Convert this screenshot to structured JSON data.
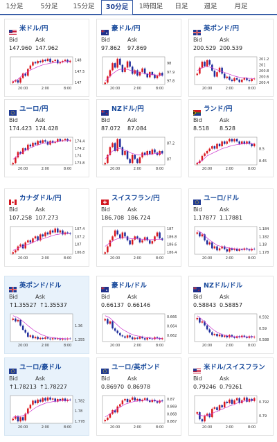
{
  "tabs": [
    "1分足",
    "5分足",
    "15分足",
    "30分足",
    "1時間足",
    "日足",
    "週足",
    "月足"
  ],
  "active_tab": 3,
  "labels": {
    "bid": "Bid",
    "ask": "Ask"
  },
  "colors": {
    "title": "#1a4b9c",
    "up": "#d9181f",
    "down": "#1f2d9c",
    "ma": "#cc33cc",
    "highlight": "#e8f2fb"
  },
  "cards": [
    {
      "name": "米ドル/円",
      "flag": "us",
      "bid": "147.960",
      "ask": "147.962",
      "highlight": false,
      "arrow": false,
      "chart_data": {
        "type": "candlestick",
        "yticks": [
          "148",
          "147.5",
          "147"
        ],
        "xticks": [
          "20:00",
          "2:00",
          "8:00"
        ],
        "closes": [
          147.05,
          147.1,
          147.0,
          147.2,
          147.4,
          147.3,
          147.6,
          147.75,
          147.9,
          147.85,
          147.95,
          147.9,
          148.0,
          147.95,
          148.05,
          147.9,
          147.95,
          148.0,
          147.85,
          147.9,
          147.95,
          148.0,
          147.9,
          147.96
        ],
        "ma": [
          147.05,
          147.1,
          147.15,
          147.25,
          147.35,
          147.4,
          147.48,
          147.55,
          147.6,
          147.65,
          147.7,
          147.74,
          147.78,
          147.8,
          147.83,
          147.85,
          147.87,
          147.88,
          147.9,
          147.9,
          147.91,
          147.92,
          147.93,
          147.93
        ]
      }
    },
    {
      "name": "豪ドル/円",
      "flag": "au",
      "bid": "97.862",
      "ask": "97.869",
      "highlight": false,
      "arrow": false,
      "chart_data": {
        "type": "candlestick",
        "yticks": [
          "98",
          "97.9",
          "97.8"
        ],
        "xticks": [
          "20:00",
          "2:00",
          "8:00"
        ],
        "closes": [
          97.78,
          97.85,
          97.92,
          98.0,
          97.95,
          98.05,
          97.98,
          97.9,
          97.95,
          98.02,
          97.96,
          97.88,
          97.92,
          97.86,
          97.9,
          97.94,
          97.88,
          97.84,
          97.9,
          97.87,
          97.83,
          97.86,
          97.89,
          97.86
        ],
        "ma": [
          97.8,
          97.82,
          97.85,
          97.88,
          97.9,
          97.92,
          97.93,
          97.93,
          97.93,
          97.93,
          97.92,
          97.91,
          97.9,
          97.9,
          97.89,
          97.89,
          97.88,
          97.88,
          97.87,
          97.87,
          97.87,
          97.86,
          97.86,
          97.86
        ]
      }
    },
    {
      "name": "英ポンド/円",
      "flag": "gb",
      "bid": "200.529",
      "ask": "200.539",
      "highlight": false,
      "arrow": false,
      "chart_data": {
        "type": "candlestick",
        "yticks": [
          "201.2",
          "201",
          "200.8",
          "200.6",
          "200.4"
        ],
        "xticks": [
          "20:00",
          "2:00",
          "8:00"
        ],
        "closes": [
          200.7,
          200.9,
          201.1,
          200.95,
          201.15,
          201.0,
          200.8,
          200.6,
          200.75,
          200.9,
          200.7,
          200.55,
          200.6,
          200.5,
          200.45,
          200.55,
          200.5,
          200.42,
          200.5,
          200.55,
          200.48,
          200.45,
          200.52,
          200.53
        ],
        "ma": [
          200.8,
          200.85,
          200.9,
          200.92,
          200.93,
          200.92,
          200.9,
          200.86,
          200.83,
          200.8,
          200.77,
          200.74,
          200.71,
          200.68,
          200.65,
          200.62,
          200.6,
          200.58,
          200.57,
          200.56,
          200.55,
          200.54,
          200.54,
          200.53
        ]
      }
    },
    {
      "name": "ユーロ/円",
      "flag": "eu",
      "bid": "174.423",
      "ask": "174.428",
      "highlight": false,
      "arrow": false,
      "chart_data": {
        "type": "candlestick",
        "yticks": [
          "174.4",
          "174.2",
          "174",
          "173.8"
        ],
        "xticks": [
          "20:00",
          "2:00",
          "8:00"
        ],
        "closes": [
          173.8,
          173.95,
          174.1,
          174.05,
          174.2,
          174.15,
          174.3,
          174.25,
          174.35,
          174.3,
          174.4,
          174.35,
          174.42,
          174.38,
          174.3,
          174.4,
          174.35,
          174.38,
          174.45,
          174.4,
          174.42,
          174.45,
          174.4,
          174.42
        ],
        "ma": [
          173.9,
          173.95,
          174.0,
          174.05,
          174.1,
          174.14,
          174.18,
          174.21,
          174.24,
          174.27,
          174.29,
          174.31,
          174.33,
          174.34,
          174.35,
          174.36,
          174.37,
          174.37,
          174.38,
          174.39,
          174.4,
          174.4,
          174.41,
          174.41
        ]
      }
    },
    {
      "name": "NZドル/円",
      "flag": "nz",
      "bid": "87.072",
      "ask": "87.084",
      "highlight": false,
      "arrow": false,
      "chart_data": {
        "type": "candlestick",
        "yticks": [
          "87.2",
          "87"
        ],
        "xticks": [
          "20:00",
          "2:00",
          "8:00"
        ],
        "closes": [
          86.95,
          87.05,
          87.15,
          87.2,
          87.1,
          87.25,
          87.15,
          87.05,
          87.1,
          87.0,
          86.95,
          87.05,
          87.0,
          86.95,
          87.02,
          87.08,
          87.05,
          87.1,
          87.06,
          87.12,
          87.08,
          87.05,
          87.1,
          87.07
        ],
        "ma": [
          87.0,
          87.03,
          87.07,
          87.1,
          87.11,
          87.13,
          87.13,
          87.12,
          87.11,
          87.1,
          87.08,
          87.07,
          87.06,
          87.05,
          87.05,
          87.05,
          87.05,
          87.06,
          87.06,
          87.06,
          87.07,
          87.07,
          87.07,
          87.07
        ]
      }
    },
    {
      "name": "ランド/円",
      "flag": "za",
      "bid": "8.518",
      "ask": "8.528",
      "highlight": false,
      "arrow": false,
      "chart_data": {
        "type": "candlestick",
        "yticks": [
          "8.5",
          "8.45"
        ],
        "xticks": [
          "20:00",
          "2:00",
          "8:00"
        ],
        "closes": [
          8.44,
          8.45,
          8.47,
          8.48,
          8.49,
          8.5,
          8.51,
          8.5,
          8.52,
          8.51,
          8.53,
          8.52,
          8.53,
          8.54,
          8.53,
          8.54,
          8.53,
          8.52,
          8.53,
          8.52,
          8.53,
          8.52,
          8.51,
          8.52
        ],
        "ma": [
          8.44,
          8.445,
          8.45,
          8.46,
          8.47,
          8.475,
          8.48,
          8.485,
          8.49,
          8.495,
          8.5,
          8.503,
          8.506,
          8.51,
          8.512,
          8.515,
          8.517,
          8.518,
          8.52,
          8.52,
          8.521,
          8.521,
          8.52,
          8.52
        ]
      }
    },
    {
      "name": "カナダドル/円",
      "flag": "ca",
      "bid": "107.258",
      "ask": "107.273",
      "highlight": false,
      "arrow": false,
      "chart_data": {
        "type": "candlestick",
        "yticks": [
          "107.4",
          "107.2",
          "107",
          "106.8"
        ],
        "xticks": [
          "20:00",
          "2:00",
          "8:00"
        ],
        "closes": [
          106.8,
          106.85,
          106.95,
          107.0,
          106.9,
          107.05,
          107.1,
          107.05,
          107.15,
          107.2,
          107.1,
          107.25,
          107.2,
          107.3,
          107.25,
          107.35,
          107.3,
          107.4,
          107.3,
          107.35,
          107.25,
          107.3,
          107.28,
          107.26
        ],
        "ma": [
          106.85,
          106.87,
          106.9,
          106.93,
          106.95,
          106.98,
          107.0,
          107.02,
          107.05,
          107.08,
          107.1,
          107.12,
          107.14,
          107.16,
          107.18,
          107.2,
          107.22,
          107.24,
          107.25,
          107.26,
          107.27,
          107.27,
          107.27,
          107.27
        ]
      }
    },
    {
      "name": "スイスフラン/円",
      "flag": "ch",
      "bid": "186.708",
      "ask": "186.724",
      "highlight": false,
      "arrow": false,
      "chart_data": {
        "type": "candlestick",
        "yticks": [
          "187",
          "186.8",
          "186.6",
          "186.4"
        ],
        "xticks": [
          "20:00",
          "2:00",
          "8:00"
        ],
        "closes": [
          186.4,
          186.55,
          186.7,
          186.8,
          186.95,
          186.85,
          186.75,
          186.9,
          186.8,
          186.7,
          186.6,
          186.72,
          186.8,
          186.75,
          186.65,
          186.7,
          186.78,
          186.7,
          186.62,
          186.68,
          186.8,
          186.9,
          186.75,
          186.71
        ],
        "ma": [
          186.55,
          186.6,
          186.64,
          186.68,
          186.72,
          186.74,
          186.76,
          186.77,
          186.77,
          186.76,
          186.75,
          186.74,
          186.74,
          186.74,
          186.73,
          186.73,
          186.73,
          186.72,
          186.72,
          186.72,
          186.72,
          186.73,
          186.73,
          186.72
        ]
      }
    },
    {
      "name": "ユーロ/ドル",
      "flag": "eu",
      "bid": "1.17877",
      "ask": "1.17881",
      "highlight": false,
      "arrow": false,
      "chart_data": {
        "type": "candlestick",
        "yticks": [
          "1.184",
          "1.182",
          "1.18",
          "1.178"
        ],
        "xticks": [
          "20:00",
          "2:00",
          "8:00"
        ],
        "closes": [
          1.183,
          1.182,
          1.1825,
          1.181,
          1.18,
          1.1805,
          1.179,
          1.1795,
          1.1785,
          1.179,
          1.1795,
          1.1788,
          1.1782,
          1.179,
          1.1786,
          1.1789,
          1.1784,
          1.1788,
          1.1786,
          1.179,
          1.1787,
          1.1785,
          1.1789,
          1.1788
        ],
        "ma": [
          1.1835,
          1.1832,
          1.1828,
          1.1822,
          1.1816,
          1.1811,
          1.1806,
          1.1802,
          1.1798,
          1.1796,
          1.1794,
          1.1793,
          1.1792,
          1.1791,
          1.179,
          1.1789,
          1.1789,
          1.1788,
          1.1788,
          1.1788,
          1.1788,
          1.1788,
          1.1788,
          1.1788
        ]
      }
    },
    {
      "name": "英ポンド/ドル",
      "flag": "gb",
      "bid": "1.35527",
      "ask": "1.35537",
      "highlight": true,
      "arrow": true,
      "chart_data": {
        "type": "candlestick",
        "yticks": [
          "1.36",
          "1.355"
        ],
        "xticks": [
          "20:00",
          "2:00",
          "8:00"
        ],
        "closes": [
          1.3625,
          1.3615,
          1.362,
          1.36,
          1.3585,
          1.3575,
          1.356,
          1.3565,
          1.3555,
          1.356,
          1.3552,
          1.3556,
          1.3553,
          1.3558,
          1.3554,
          1.3551,
          1.3555,
          1.3552,
          1.3554,
          1.355,
          1.3553,
          1.3551,
          1.3554,
          1.3553
        ],
        "ma": [
          1.3635,
          1.3632,
          1.3628,
          1.3622,
          1.3615,
          1.3608,
          1.36,
          1.3593,
          1.3586,
          1.358,
          1.3575,
          1.357,
          1.3566,
          1.3563,
          1.356,
          1.3558,
          1.3557,
          1.3556,
          1.3555,
          1.3554,
          1.3554,
          1.3553,
          1.3553,
          1.3553
        ]
      }
    },
    {
      "name": "豪ドル/ドル",
      "flag": "au",
      "bid": "0.66137",
      "ask": "0.66146",
      "highlight": false,
      "arrow": false,
      "chart_data": {
        "type": "candlestick",
        "yticks": [
          "0.666",
          "0.664",
          "0.662"
        ],
        "xticks": [
          "20:00",
          "2:00",
          "8:00"
        ],
        "closes": [
          0.6655,
          0.6645,
          0.665,
          0.6635,
          0.663,
          0.6625,
          0.662,
          0.6618,
          0.6615,
          0.662,
          0.6616,
          0.6612,
          0.6615,
          0.6613,
          0.6617,
          0.6614,
          0.6611,
          0.6615,
          0.6613,
          0.6612,
          0.6616,
          0.6614,
          0.6612,
          0.6614
        ],
        "ma": [
          0.6662,
          0.666,
          0.6657,
          0.6652,
          0.6647,
          0.6642,
          0.6637,
          0.6633,
          0.663,
          0.6627,
          0.6624,
          0.6622,
          0.662,
          0.6619,
          0.6618,
          0.6617,
          0.6616,
          0.6615,
          0.6615,
          0.6614,
          0.6614,
          0.6614,
          0.6614,
          0.6614
        ]
      }
    },
    {
      "name": "NZドル/ドル",
      "flag": "nz",
      "bid": "0.58843",
      "ask": "0.58857",
      "highlight": false,
      "arrow": false,
      "chart_data": {
        "type": "candlestick",
        "yticks": [
          "0.592",
          "0.59",
          "0.588"
        ],
        "xticks": [
          "20:00",
          "2:00",
          "8:00"
        ],
        "closes": [
          0.5918,
          0.591,
          0.5912,
          0.5905,
          0.5898,
          0.5893,
          0.5888,
          0.589,
          0.5886,
          0.5889,
          0.5885,
          0.5887,
          0.5884,
          0.5888,
          0.5885,
          0.5883,
          0.5886,
          0.5884,
          0.5887,
          0.5885,
          0.5883,
          0.5886,
          0.5884,
          0.5885
        ],
        "ma": [
          0.5922,
          0.5919,
          0.5915,
          0.5911,
          0.5907,
          0.5903,
          0.5899,
          0.5896,
          0.5893,
          0.5891,
          0.5889,
          0.5888,
          0.5887,
          0.5886,
          0.5886,
          0.5885,
          0.5885,
          0.5885,
          0.5885,
          0.5885,
          0.5885,
          0.5885,
          0.5885,
          0.5885
        ]
      }
    },
    {
      "name": "ユーロ/豪ドル",
      "flag": "eu",
      "bid": "1.78213",
      "ask": "1.78227",
      "highlight": true,
      "arrow": true,
      "chart_data": {
        "type": "candlestick",
        "yticks": [
          "1.782",
          "1.78",
          "1.778"
        ],
        "xticks": [
          "20:00",
          "2:00",
          "8:00"
        ],
        "closes": [
          1.7785,
          1.779,
          1.778,
          1.7788,
          1.7782,
          1.7795,
          1.7805,
          1.7812,
          1.782,
          1.7815,
          1.7822,
          1.7818,
          1.7825,
          1.782,
          1.7826,
          1.7822,
          1.7824,
          1.7818,
          1.7823,
          1.782,
          1.7824,
          1.7819,
          1.7822,
          1.7821
        ],
        "ma": [
          1.7788,
          1.7789,
          1.7789,
          1.779,
          1.7791,
          1.7793,
          1.7796,
          1.7799,
          1.7803,
          1.7806,
          1.7809,
          1.7811,
          1.7813,
          1.7815,
          1.7816,
          1.7817,
          1.7818,
          1.7819,
          1.7819,
          1.782,
          1.782,
          1.782,
          1.7821,
          1.7821
        ]
      }
    },
    {
      "name": "ユーロ/英ポンド",
      "flag": "eu",
      "bid": "0.86970",
      "ask": "0.86978",
      "highlight": false,
      "arrow": false,
      "chart_data": {
        "type": "candlestick",
        "yticks": [
          "0.87",
          "0.869",
          "0.868",
          "0.867"
        ],
        "xticks": [
          "20:00",
          "2:00",
          "8:00"
        ],
        "closes": [
          0.8672,
          0.8675,
          0.868,
          0.8685,
          0.8682,
          0.869,
          0.8693,
          0.8698,
          0.87,
          0.8696,
          0.8699,
          0.8702,
          0.8698,
          0.87,
          0.8697,
          0.8699,
          0.8701,
          0.8698,
          0.8696,
          0.8699,
          0.8697,
          0.8695,
          0.8698,
          0.8697
        ],
        "ma": [
          0.8676,
          0.8678,
          0.868,
          0.8683,
          0.8685,
          0.8687,
          0.8689,
          0.8691,
          0.8693,
          0.8694,
          0.8695,
          0.8696,
          0.8697,
          0.8697,
          0.8698,
          0.8698,
          0.8698,
          0.8698,
          0.8698,
          0.8698,
          0.8698,
          0.8697,
          0.8697,
          0.8697
        ]
      }
    },
    {
      "name": "米ドル/スイスフラン",
      "flag": "us",
      "bid": "0.79246",
      "ask": "0.79261",
      "highlight": false,
      "arrow": false,
      "chart_data": {
        "type": "candlestick",
        "yticks": [
          "0.792",
          "0.79"
        ],
        "xticks": [
          "20:00",
          "2:00",
          "8:00"
        ],
        "closes": [
          0.7905,
          0.7895,
          0.7892,
          0.79,
          0.7903,
          0.7898,
          0.791,
          0.7912,
          0.7908,
          0.7915,
          0.7912,
          0.792,
          0.7918,
          0.7923,
          0.7917,
          0.7922,
          0.7925,
          0.7918,
          0.7922,
          0.7926,
          0.792,
          0.7924,
          0.7921,
          0.7925
        ],
        "ma": [
          0.7902,
          0.7901,
          0.79,
          0.79,
          0.7901,
          0.7901,
          0.7903,
          0.7905,
          0.7906,
          0.7908,
          0.7909,
          0.7911,
          0.7912,
          0.7914,
          0.7915,
          0.7916,
          0.7918,
          0.7919,
          0.792,
          0.7921,
          0.7921,
          0.7922,
          0.7922,
          0.7923
        ]
      }
    }
  ]
}
